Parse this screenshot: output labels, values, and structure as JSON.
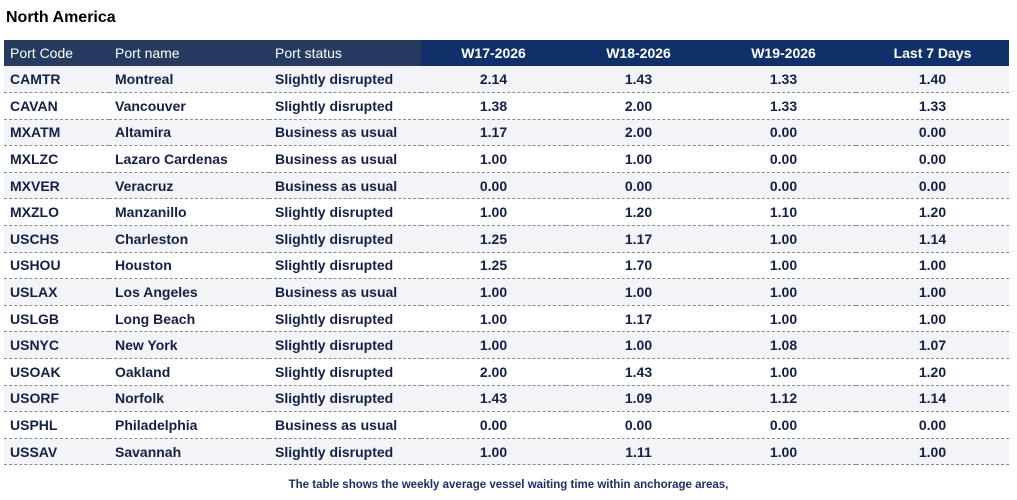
{
  "title": "North America",
  "columns": [
    "Port Code",
    "Port name",
    "Port status",
    "W17-2026",
    "W18-2026",
    "W19-2026",
    "Last 7 Days"
  ],
  "rows": [
    {
      "code": "CAMTR",
      "name": "Montreal",
      "status": "Slightly disrupted",
      "w17": "2.14",
      "w18": "1.43",
      "w19": "1.33",
      "last7": "1.40"
    },
    {
      "code": "CAVAN",
      "name": "Vancouver",
      "status": "Slightly disrupted",
      "w17": "1.38",
      "w18": "2.00",
      "w19": "1.33",
      "last7": "1.33"
    },
    {
      "code": "MXATM",
      "name": "Altamira",
      "status": "Business as usual",
      "w17": "1.17",
      "w18": "2.00",
      "w19": "0.00",
      "last7": "0.00"
    },
    {
      "code": "MXLZC",
      "name": "Lazaro Cardenas",
      "status": "Business as usual",
      "w17": "1.00",
      "w18": "1.00",
      "w19": "0.00",
      "last7": "0.00"
    },
    {
      "code": "MXVER",
      "name": "Veracruz",
      "status": "Business as usual",
      "w17": "0.00",
      "w18": "0.00",
      "w19": "0.00",
      "last7": "0.00"
    },
    {
      "code": "MXZLO",
      "name": "Manzanillo",
      "status": "Slightly disrupted",
      "w17": "1.00",
      "w18": "1.20",
      "w19": "1.10",
      "last7": "1.20"
    },
    {
      "code": "USCHS",
      "name": "Charleston",
      "status": "Slightly disrupted",
      "w17": "1.25",
      "w18": "1.17",
      "w19": "1.00",
      "last7": "1.14"
    },
    {
      "code": "USHOU",
      "name": "Houston",
      "status": "Slightly disrupted",
      "w17": "1.25",
      "w18": "1.70",
      "w19": "1.00",
      "last7": "1.00"
    },
    {
      "code": "USLAX",
      "name": "Los Angeles",
      "status": "Business as usual",
      "w17": "1.00",
      "w18": "1.00",
      "w19": "1.00",
      "last7": "1.00"
    },
    {
      "code": "USLGB",
      "name": "Long Beach",
      "status": "Slightly disrupted",
      "w17": "1.00",
      "w18": "1.17",
      "w19": "1.00",
      "last7": "1.00"
    },
    {
      "code": "USNYC",
      "name": "New York",
      "status": "Slightly disrupted",
      "w17": "1.00",
      "w18": "1.00",
      "w19": "1.08",
      "last7": "1.07"
    },
    {
      "code": "USOAK",
      "name": "Oakland",
      "status": "Slightly disrupted",
      "w17": "2.00",
      "w18": "1.43",
      "w19": "1.00",
      "last7": "1.20"
    },
    {
      "code": "USORF",
      "name": "Norfolk",
      "status": "Slightly disrupted",
      "w17": "1.43",
      "w18": "1.09",
      "w19": "1.12",
      "last7": "1.14"
    },
    {
      "code": "USPHL",
      "name": "Philadelphia",
      "status": "Business as usual",
      "w17": "0.00",
      "w18": "0.00",
      "w19": "0.00",
      "last7": "0.00"
    },
    {
      "code": "USSAV",
      "name": "Savannah",
      "status": "Slightly disrupted",
      "w17": "1.00",
      "w18": "1.11",
      "w19": "1.00",
      "last7": "1.00"
    }
  ],
  "footnote": "The table shows the weekly average vessel waiting time within anchorage areas,",
  "colors": {
    "header_left": "#273b61",
    "header_right": "#10306a",
    "row_alt": "#f3f4f8",
    "text": "#11204a"
  }
}
